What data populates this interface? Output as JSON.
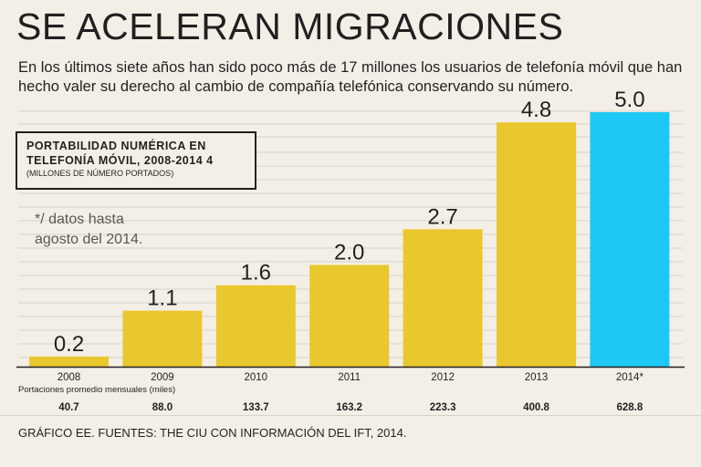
{
  "header": {
    "title": "SE ACELERAN MIGRACIONES",
    "subtitle_line1": "En los últimos siete años han sido poco más de 17 millones los usuarios de telefonía móvil que han",
    "subtitle_line2": "hecho valer su derecho al cambio de compañía telefónica conservando su número."
  },
  "legend": {
    "title_line1": "PORTABILIDAD NUMÉRICA EN",
    "title_line2": "TELEFONÍA MÓVIL, 2008-2014 4",
    "units": "(MILLONES DE NÚMERO PORTADOS)"
  },
  "note": {
    "line1": "*/ datos hasta",
    "line2": "agosto del 2014."
  },
  "avg_label": "Portaciones promedio mensuales (miles)",
  "footer": "GRÁFICO EE. FUENTES: THE CIU CON INFORMACIÓN DEL IFT, 2014.",
  "chart_data": {
    "type": "bar",
    "title": "PORTABILIDAD NUMÉRICA EN TELEFONÍA MÓVIL, 2008-2014 4",
    "ylabel": "(MILLONES DE NÚMERO PORTADOS)",
    "xlabel": "",
    "ylim": [
      0,
      5.5
    ],
    "grid": true,
    "categories": [
      "2008",
      "2009",
      "2010",
      "2011",
      "2012",
      "2013",
      "2014*"
    ],
    "values": [
      0.2,
      1.1,
      1.6,
      2.0,
      2.7,
      4.8,
      5.0
    ],
    "value_labels": [
      "0.2",
      "1.1",
      "1.6",
      "2.0",
      "2.7",
      "4.8",
      "5.0"
    ],
    "monthly_avg_labels": [
      "40.7",
      "88.0",
      "133.7",
      "163.2",
      "223.3",
      "400.8",
      "628.8"
    ],
    "colors": {
      "bar": "#e8c82e",
      "highlight": "#1ec8f4",
      "grid": "#d9d3c9",
      "axis": "#231f20"
    }
  }
}
